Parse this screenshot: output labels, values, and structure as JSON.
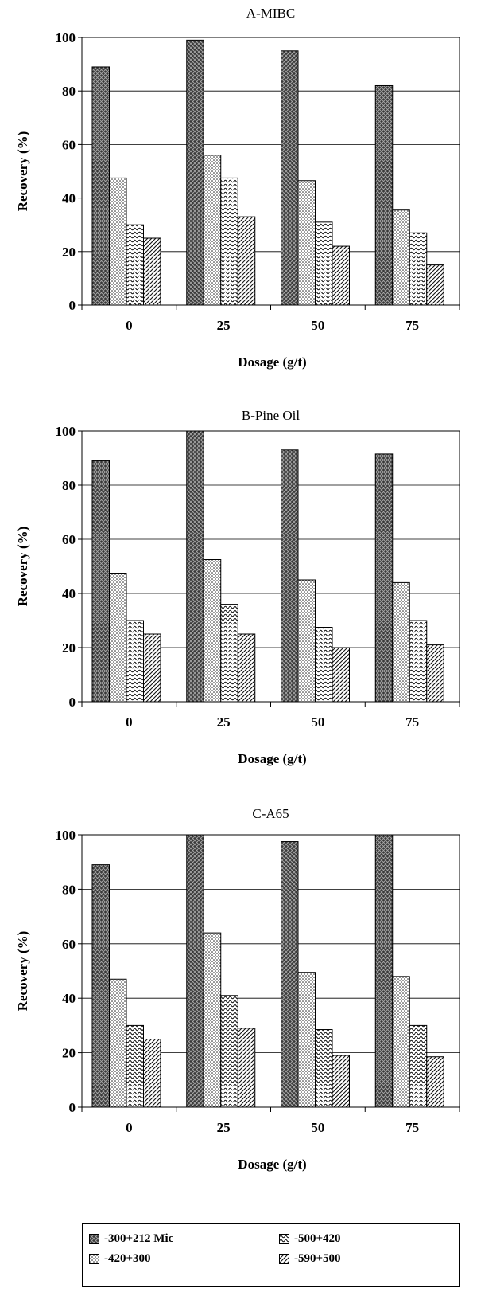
{
  "chart_data": [
    {
      "type": "bar",
      "title": "A-MIBC",
      "xlabel": "Dosage (g/t)",
      "ylabel": "Recovery (%)",
      "ylim": [
        0,
        100
      ],
      "yticks": [
        "0",
        "20",
        "40",
        "60",
        "80",
        "100"
      ],
      "categories": [
        "0",
        "25",
        "50",
        "75"
      ],
      "grid": true,
      "series": [
        {
          "name": "-300+212 Mic",
          "values": [
            89,
            99,
            95,
            82
          ]
        },
        {
          "name": "-420+300",
          "values": [
            47.5,
            56,
            46.5,
            35.5
          ]
        },
        {
          "name": "-500+420",
          "values": [
            30,
            47.5,
            31,
            27
          ]
        },
        {
          "name": "-590+500",
          "values": [
            25,
            33,
            22,
            15
          ]
        }
      ]
    },
    {
      "type": "bar",
      "title": "B-Pine Oil",
      "xlabel": "Dosage (g/t)",
      "ylabel": "Recovery (%)",
      "ylim": [
        0,
        100
      ],
      "yticks": [
        "0",
        "20",
        "40",
        "60",
        "80",
        "100"
      ],
      "categories": [
        "0",
        "25",
        "50",
        "75"
      ],
      "grid": true,
      "series": [
        {
          "name": "-300+212 Mic",
          "values": [
            89,
            100,
            93,
            91.5
          ]
        },
        {
          "name": "-420+300",
          "values": [
            47.5,
            52.5,
            45,
            44
          ]
        },
        {
          "name": "-500+420",
          "values": [
            30,
            36,
            27.5,
            30
          ]
        },
        {
          "name": "-590+500",
          "values": [
            25,
            25,
            20,
            21
          ]
        }
      ]
    },
    {
      "type": "bar",
      "title": "C-A65",
      "xlabel": "Dosage (g/t)",
      "ylabel": "Recovery (%)",
      "ylim": [
        0,
        100
      ],
      "yticks": [
        "0",
        "20",
        "40",
        "60",
        "80",
        "100"
      ],
      "categories": [
        "0",
        "25",
        "50",
        "75"
      ],
      "grid": true,
      "series": [
        {
          "name": "-300+212 Mic",
          "values": [
            89,
            100,
            97.5,
            100
          ]
        },
        {
          "name": "-420+300",
          "values": [
            47,
            64,
            49.5,
            48
          ]
        },
        {
          "name": "-500+420",
          "values": [
            30,
            41,
            28.5,
            30
          ]
        },
        {
          "name": "-590+500",
          "values": [
            25,
            29,
            19,
            18.5
          ]
        }
      ]
    }
  ],
  "legend": {
    "placement": "bottom",
    "items": [
      {
        "label": "-300+212 Mic",
        "pattern": "crosshatch-dark"
      },
      {
        "label": "-500+420",
        "pattern": "wave"
      },
      {
        "label": "-420+300",
        "pattern": "dots"
      },
      {
        "label": "-590+500",
        "pattern": "diagonal"
      }
    ]
  }
}
